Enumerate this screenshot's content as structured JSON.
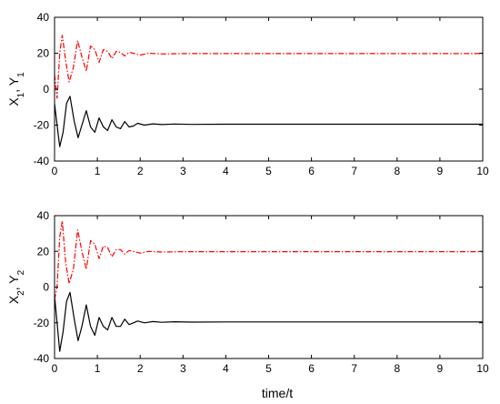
{
  "xlabel": "time/t",
  "colors": {
    "x_series": "#000000",
    "y_series": "#ff0000",
    "axes": "#000000",
    "background": "#ffffff"
  },
  "chart_data": [
    {
      "type": "line",
      "ylabel_parts": [
        "X",
        "1",
        ", Y",
        "1"
      ],
      "xlim": [
        0,
        10
      ],
      "ylim": [
        -40,
        40
      ],
      "xticks": [
        0,
        1,
        2,
        3,
        4,
        5,
        6,
        7,
        8,
        9,
        10
      ],
      "yticks": [
        -40,
        -20,
        0,
        20,
        40
      ],
      "grid": false,
      "series": [
        {
          "style": "solid",
          "color": "#000000",
          "points": [
            [
              0,
              -8
            ],
            [
              0.06,
              -20
            ],
            [
              0.12,
              -32
            ],
            [
              0.2,
              -24
            ],
            [
              0.28,
              -8
            ],
            [
              0.36,
              -4
            ],
            [
              0.46,
              -18
            ],
            [
              0.55,
              -27
            ],
            [
              0.64,
              -20
            ],
            [
              0.74,
              -12
            ],
            [
              0.84,
              -21
            ],
            [
              0.94,
              -24
            ],
            [
              1.04,
              -16
            ],
            [
              1.14,
              -21
            ],
            [
              1.24,
              -23
            ],
            [
              1.34,
              -17
            ],
            [
              1.44,
              -21
            ],
            [
              1.54,
              -22
            ],
            [
              1.64,
              -18
            ],
            [
              1.74,
              -21
            ],
            [
              1.84,
              -20.5
            ],
            [
              1.94,
              -19
            ],
            [
              2.1,
              -20
            ],
            [
              2.3,
              -19.3
            ],
            [
              2.5,
              -19.7
            ],
            [
              2.8,
              -19.4
            ],
            [
              3.2,
              -19.6
            ],
            [
              4,
              -19.5
            ],
            [
              10,
              -19.5
            ]
          ]
        },
        {
          "style": "dashdot",
          "color": "#ff0000",
          "points": [
            [
              0,
              8
            ],
            [
              0.06,
              -5
            ],
            [
              0.12,
              20
            ],
            [
              0.18,
              30
            ],
            [
              0.26,
              16
            ],
            [
              0.34,
              4
            ],
            [
              0.44,
              12
            ],
            [
              0.54,
              27
            ],
            [
              0.64,
              18
            ],
            [
              0.74,
              10
            ],
            [
              0.84,
              24
            ],
            [
              0.94,
              22
            ],
            [
              1.04,
              15
            ],
            [
              1.14,
              22
            ],
            [
              1.24,
              21
            ],
            [
              1.34,
              17
            ],
            [
              1.44,
              21
            ],
            [
              1.54,
              20.5
            ],
            [
              1.64,
              18.5
            ],
            [
              1.74,
              20.5
            ],
            [
              1.84,
              20
            ],
            [
              2.0,
              19
            ],
            [
              2.2,
              20
            ],
            [
              2.5,
              19.6
            ],
            [
              3,
              19.8
            ],
            [
              10,
              19.8
            ]
          ]
        }
      ]
    },
    {
      "type": "line",
      "ylabel_parts": [
        "X",
        "2",
        ", Y",
        "2"
      ],
      "xlim": [
        0,
        10
      ],
      "ylim": [
        -40,
        40
      ],
      "xticks": [
        0,
        1,
        2,
        3,
        4,
        5,
        6,
        7,
        8,
        9,
        10
      ],
      "yticks": [
        -40,
        -20,
        0,
        20,
        40
      ],
      "grid": false,
      "series": [
        {
          "style": "solid",
          "color": "#000000",
          "points": [
            [
              0,
              -5
            ],
            [
              0.06,
              -20
            ],
            [
              0.12,
              -36
            ],
            [
              0.2,
              -25
            ],
            [
              0.28,
              -8
            ],
            [
              0.36,
              -3
            ],
            [
              0.46,
              -18
            ],
            [
              0.55,
              -30
            ],
            [
              0.64,
              -22
            ],
            [
              0.74,
              -10
            ],
            [
              0.84,
              -22
            ],
            [
              0.94,
              -27
            ],
            [
              1.04,
              -17
            ],
            [
              1.14,
              -22
            ],
            [
              1.24,
              -24
            ],
            [
              1.34,
              -17
            ],
            [
              1.44,
              -22
            ],
            [
              1.54,
              -22
            ],
            [
              1.64,
              -18
            ],
            [
              1.74,
              -21
            ],
            [
              1.84,
              -20
            ],
            [
              1.94,
              -19
            ],
            [
              2.1,
              -20
            ],
            [
              2.3,
              -19.3
            ],
            [
              2.5,
              -19.7
            ],
            [
              2.8,
              -19.4
            ],
            [
              3.2,
              -19.6
            ],
            [
              4,
              -19.5
            ],
            [
              10,
              -19.5
            ]
          ]
        },
        {
          "style": "dashdot",
          "color": "#ff0000",
          "points": [
            [
              0,
              -7
            ],
            [
              0.06,
              0
            ],
            [
              0.12,
              28
            ],
            [
              0.18,
              37
            ],
            [
              0.26,
              14
            ],
            [
              0.34,
              2
            ],
            [
              0.44,
              10
            ],
            [
              0.54,
              32
            ],
            [
              0.64,
              20
            ],
            [
              0.74,
              10
            ],
            [
              0.84,
              26
            ],
            [
              0.94,
              24
            ],
            [
              1.04,
              16
            ],
            [
              1.14,
              23
            ],
            [
              1.24,
              22
            ],
            [
              1.34,
              17
            ],
            [
              1.44,
              21
            ],
            [
              1.54,
              21
            ],
            [
              1.64,
              18.5
            ],
            [
              1.74,
              20.5
            ],
            [
              1.84,
              20
            ],
            [
              2.0,
              19
            ],
            [
              2.2,
              20
            ],
            [
              2.5,
              19.6
            ],
            [
              3,
              19.8
            ],
            [
              10,
              19.8
            ]
          ]
        }
      ]
    }
  ]
}
